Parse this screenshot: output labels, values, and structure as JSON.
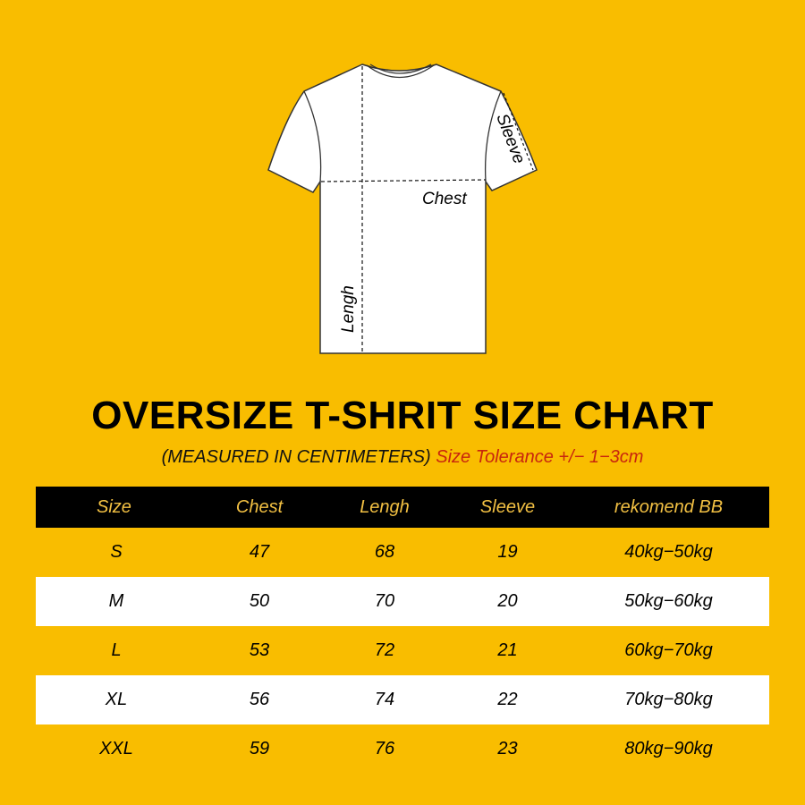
{
  "diagram": {
    "labels": {
      "chest": "Chest",
      "length": "Lengh",
      "sleeve": "Sleeve"
    },
    "colors": {
      "shirt": "#FFFFFF",
      "outline": "#333333",
      "background": "#F9BD00"
    }
  },
  "title": "OVERSIZE T-SHRIT SIZE CHART",
  "subtitle": {
    "measured": "(MEASURED IN CENTIMETERS)",
    "tolerance": "Size Tolerance +/− 1−3cm"
  },
  "table": {
    "headers": [
      "Size",
      "Chest",
      "Lengh",
      "Sleeve",
      "rekomend BB"
    ],
    "rows": [
      [
        "S",
        "47",
        "68",
        "19",
        "40kg−50kg"
      ],
      [
        "M",
        "50",
        "70",
        "20",
        "50kg−60kg"
      ],
      [
        "L",
        "53",
        "72",
        "21",
        "60kg−70kg"
      ],
      [
        "XL",
        "56",
        "74",
        "22",
        "70kg−80kg"
      ],
      [
        "XXL",
        "59",
        "76",
        "23",
        "80kg−90kg"
      ]
    ],
    "colors": {
      "header_bg": "#000000",
      "header_text": "#F2C043",
      "tolerance_text": "#C8250E"
    }
  }
}
